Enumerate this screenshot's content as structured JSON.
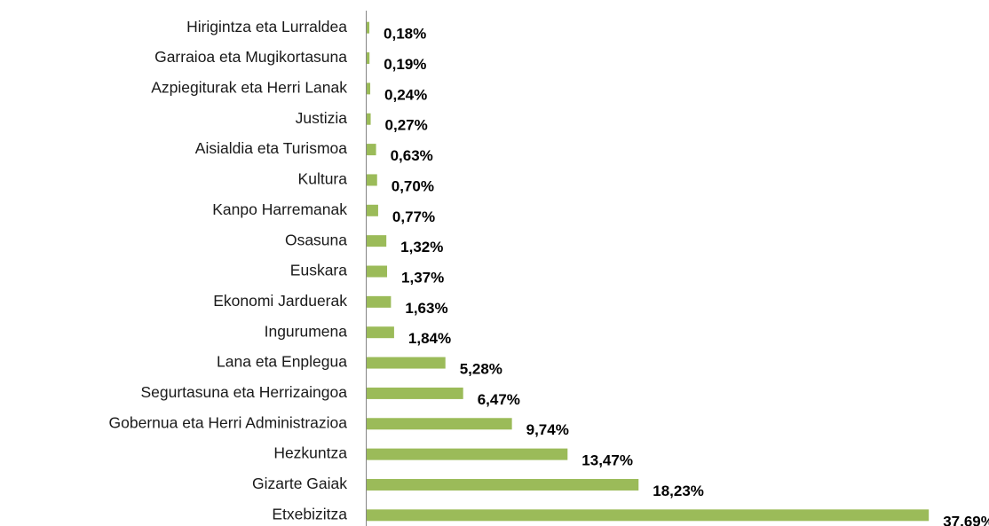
{
  "chart_data": {
    "type": "barh",
    "categories": [
      "Hirigintza eta Lurraldea",
      "Garraioa eta Mugikortasuna",
      "Azpiegiturak eta Herri Lanak",
      "Justizia",
      "Aisialdia eta Turismoa",
      "Kultura",
      "Kanpo Harremanak",
      "Osasuna",
      "Euskara",
      "Ekonomi Jarduerak",
      "Ingurumena",
      "Lana eta Enplegua",
      "Segurtasuna eta Herrizaingoa",
      "Gobernua eta Herri Administrazioa",
      "Hezkuntza",
      "Gizarte Gaiak",
      "Etxebizitza"
    ],
    "values": [
      0.18,
      0.19,
      0.24,
      0.27,
      0.63,
      0.7,
      0.77,
      1.32,
      1.37,
      1.63,
      1.84,
      5.28,
      6.47,
      9.74,
      13.47,
      18.23,
      37.69
    ],
    "value_labels": [
      "0,18%",
      "0,19%",
      "0,24%",
      "0,27%",
      "0,63%",
      "0,70%",
      "0,77%",
      "1,32%",
      "1,37%",
      "1,63%",
      "1,84%",
      "5,28%",
      "6,47%",
      "9,74%",
      "13,47%",
      "18,23%",
      "37,69%"
    ],
    "color": "#9bbb59",
    "xlim": [
      0,
      40
    ]
  }
}
